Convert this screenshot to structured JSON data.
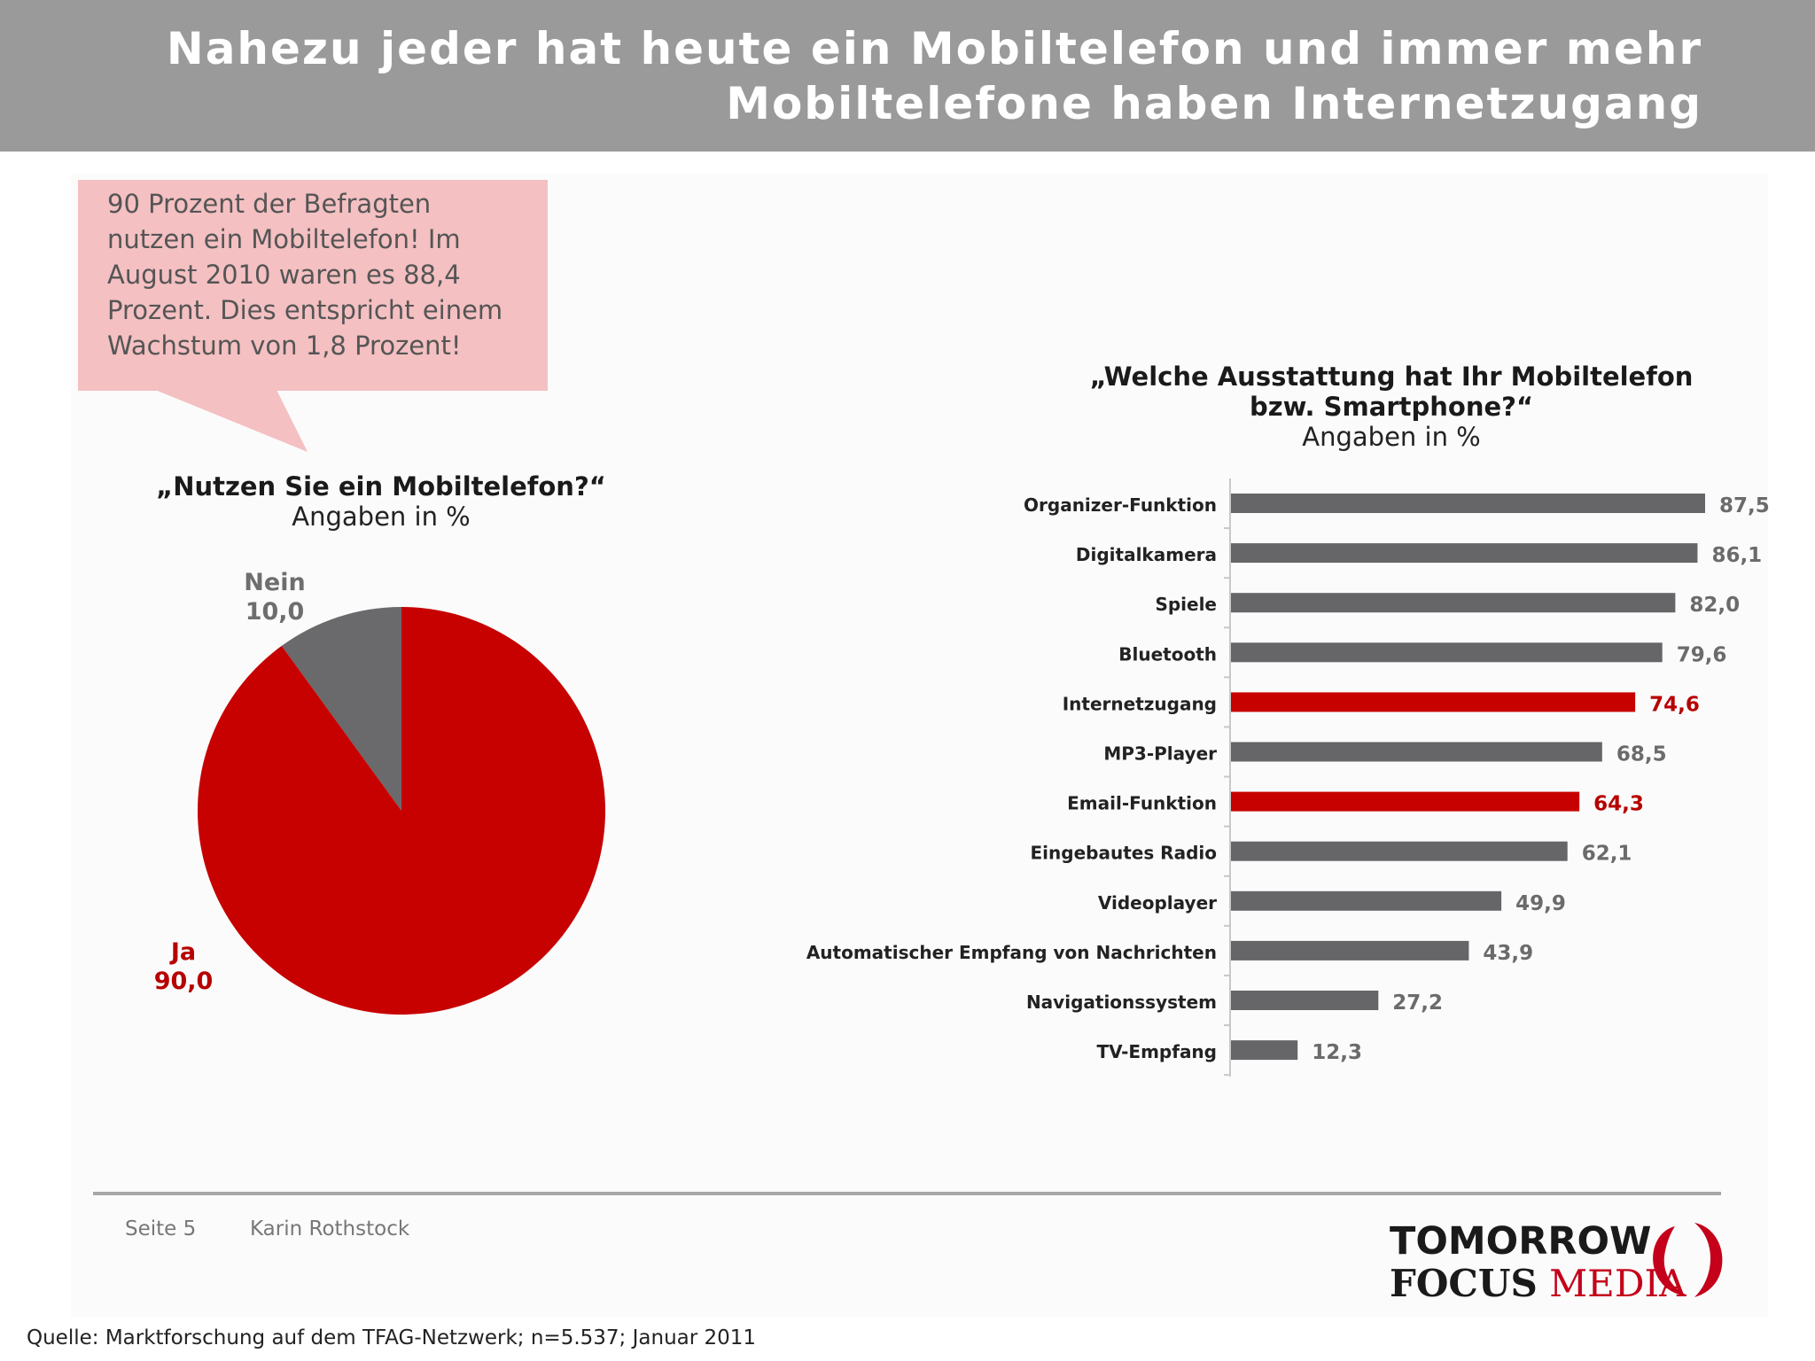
{
  "header": {
    "title_line_1": "Nahezu jeder hat heute ein Mobiltelefon und immer mehr",
    "title_line_2": "Mobiltelefone haben Internetzugang"
  },
  "callout": {
    "lines": [
      "90 Prozent der Befragten",
      "nutzen ein Mobiltelefon! Im",
      "August 2010 waren es 88,4",
      "Prozent. Dies entspricht einem",
      "Wachstum von 1,8 Prozent!"
    ]
  },
  "chart_data": [
    {
      "type": "pie",
      "title": "„Nutzen Sie ein Mobiltelefon?“",
      "subtitle": "Angaben in %",
      "slices": [
        {
          "label": "Ja",
          "value": 90.0,
          "value_label": "90,0",
          "color": "#c70000"
        },
        {
          "label": "Nein",
          "value": 10.0,
          "value_label": "10,0",
          "color": "#6a696b"
        }
      ]
    },
    {
      "type": "bar",
      "orientation": "horizontal",
      "title": "„Welche Ausstattung hat Ihr Mobiltelefon bzw. Smartphone?“",
      "title_line_1": "„Welche Ausstattung hat Ihr Mobiltelefon",
      "title_line_2": "bzw. Smartphone?“",
      "subtitle": "Angaben in %",
      "xlim": [
        0,
        100
      ],
      "categories": [
        "Organizer-Funktion",
        "Digitalkamera",
        "Spiele",
        "Bluetooth",
        "Internetzugang",
        "MP3-Player",
        "Email-Funktion",
        "Eingebautes Radio",
        "Videoplayer",
        "Automatischer Empfang von Nachrichten",
        "Navigationssystem",
        "TV-Empfang"
      ],
      "values": [
        87.5,
        86.1,
        82.0,
        79.6,
        74.6,
        68.5,
        64.3,
        62.1,
        49.9,
        43.9,
        27.2,
        12.3
      ],
      "value_labels": [
        "87,5",
        "86,1",
        "82,0",
        "79,6",
        "74,6",
        "68,5",
        "64,3",
        "62,1",
        "49,9",
        "43,9",
        "27,2",
        "12,3"
      ],
      "highlighted": [
        "Internetzugang",
        "Email-Funktion"
      ],
      "colors": {
        "default": "#666568",
        "highlight": "#c70000",
        "default_label": "#6b6b6b",
        "highlight_label": "#b70000"
      }
    }
  ],
  "footer": {
    "page": "Seite 5",
    "author": "Karin Rothstock"
  },
  "logo": {
    "line1": "TOMORROW",
    "focus": "FOCUS",
    "media": "MEDIA"
  },
  "source": "Quelle: Marktforschung auf dem TFAG-Netzwerk; n=5.537; Januar 2011"
}
